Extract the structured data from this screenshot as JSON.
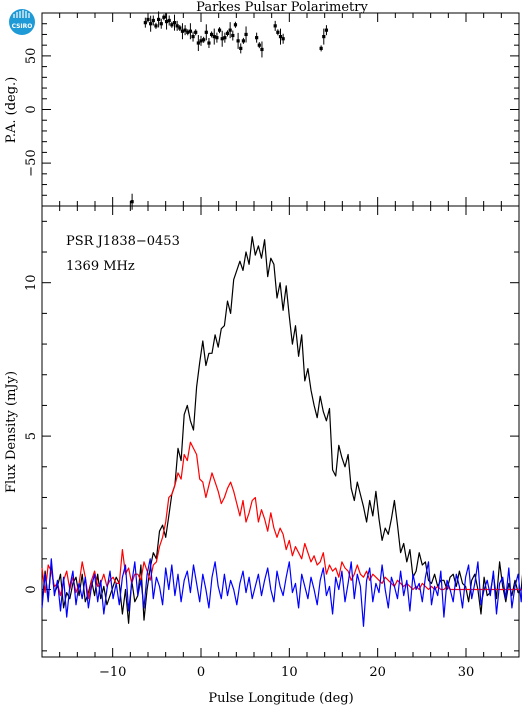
{
  "title": "Parkes Pulsar Polarimetry",
  "logo": {
    "name": "CSIRO",
    "color": "#1e9ad6"
  },
  "xaxis": {
    "label": "Pulse Longitude (deg)",
    "range": [
      -18,
      36
    ],
    "ticks": [
      -10,
      0,
      10,
      20,
      30
    ],
    "tick_labels": [
      "−10",
      "0",
      "10",
      "20",
      "30"
    ]
  },
  "chart_data": [
    {
      "type": "scatter",
      "panel": "top",
      "ylabel": "P.A. (deg.)",
      "ylim": [
        -90,
        90
      ],
      "yticks": [
        -50,
        0,
        50
      ],
      "ytick_labels": [
        "−50",
        "0",
        "50"
      ],
      "error_bars": true,
      "series": [
        {
          "color": "#000000",
          "x": [
            -7.8,
            -6.3,
            -6.0,
            -5.7,
            -5.4,
            -5.1,
            -4.8,
            -4.5,
            -4.2,
            -3.9,
            -3.6,
            -3.3,
            -3.0,
            -2.7,
            -2.4,
            -2.1,
            -1.8,
            -1.5,
            -1.2,
            -0.9,
            -0.6,
            -0.3,
            0.0,
            0.3,
            0.6,
            0.9,
            1.2,
            1.5,
            1.8,
            2.1,
            2.4,
            2.7,
            3.0,
            3.3,
            3.6,
            3.9,
            4.2,
            4.5,
            4.8,
            5.1,
            6.3,
            6.6,
            6.9,
            8.4,
            8.7,
            9.0,
            9.3,
            13.6,
            13.9,
            14.2
          ],
          "y": [
            -86,
            81,
            84,
            80,
            83,
            78,
            84,
            80,
            86,
            82,
            83,
            79,
            81,
            78,
            76,
            73,
            74,
            72,
            73,
            68,
            72,
            62,
            64,
            65,
            72,
            62,
            70,
            68,
            67,
            74,
            66,
            67,
            71,
            74,
            69,
            79,
            64,
            57,
            64,
            70,
            67,
            60,
            56,
            78,
            72,
            68,
            66,
            57,
            68,
            74
          ]
        }
      ]
    },
    {
      "type": "line",
      "panel": "bottom",
      "ylabel": "Flux Density (mJy)",
      "ylim": [
        -2.2,
        12.5
      ],
      "yticks": [
        0,
        5,
        10
      ],
      "ytick_labels": [
        "0",
        "5",
        "10"
      ],
      "annotations": [
        "PSR J1838−0453",
        "1369 MHz"
      ],
      "x_start": -18,
      "x_step": 0.35,
      "series": [
        {
          "color": "#000000",
          "values": [
            -0.5,
            0.6,
            -0.3,
            0.8,
            -0.1,
            0.1,
            0.5,
            -0.6,
            -0.1,
            -0.3,
            0.2,
            0.4,
            -0.2,
            0.5,
            -0.4,
            -0.1,
            0.3,
            -0.2,
            0.5,
            -0.3,
            0.1,
            -0.5,
            -0.2,
            0.1,
            0.4,
            0.2,
            -0.8,
            0.0,
            -1.1,
            0.3,
            -0.4,
            -0.2,
            0.8,
            -1.0,
            0.0,
            0.7,
            1.2,
            1.0,
            1.9,
            2.1,
            1.7,
            2.4,
            3.1,
            3.4,
            4.6,
            4.2,
            5.7,
            6.0,
            5.5,
            5.2,
            6.6,
            7.4,
            8.1,
            7.3,
            7.7,
            7.7,
            8.3,
            7.9,
            8.5,
            8.6,
            9.4,
            9.0,
            10.1,
            10.4,
            10.7,
            10.4,
            11.0,
            10.6,
            11.5,
            10.9,
            11.2,
            10.8,
            11.4,
            10.2,
            10.8,
            10.6,
            9.5,
            10.0,
            9.1,
            9.9,
            8.9,
            8.0,
            8.6,
            7.6,
            8.3,
            6.8,
            7.2,
            6.5,
            6.0,
            5.6,
            6.3,
            5.8,
            5.5,
            5.9,
            3.9,
            3.7,
            4.7,
            4.3,
            4.0,
            4.4,
            3.3,
            2.9,
            3.5,
            3.1,
            2.7,
            2.2,
            2.9,
            2.4,
            3.2,
            2.3,
            1.6,
            2.0,
            1.8,
            2.3,
            2.9,
            2.1,
            1.2,
            1.5,
            0.9,
            1.3,
            0.4,
            0.6,
            1.2,
            0.8,
            0.9,
            0.3,
            0.2,
            0.5,
            0.1,
            0.3,
            0.3,
            0.0,
            0.4,
            0.5,
            0.1,
            0.6,
            0.2,
            0.1,
            -0.4,
            0.3,
            0.5,
            0.0,
            -0.8,
            0.4,
            -0.2,
            -0.1,
            0.5,
            -0.3,
            0.9,
            0.1,
            -0.4,
            0.2,
            -0.2,
            0.3,
            -0.1,
            0.0,
            1.1,
            0.5,
            0.3
          ]
        },
        {
          "color": "#ff0000",
          "values": [
            0.7,
            -0.1,
            0.8,
            0.6,
            0.1,
            0.2,
            -0.2,
            0.3,
            0.6,
            0.0,
            0.4,
            -0.1,
            0.2,
            0.9,
            0.4,
            -0.3,
            0.3,
            0.6,
            0.1,
            0.2,
            0.5,
            0.1,
            0.3,
            0.4,
            0.2,
            0.2,
            1.3,
            0.5,
            0.7,
            0.2,
            0.5,
            0.5,
            0.3,
            0.9,
            0.6,
            0.3,
            0.8,
            0.9,
            1.4,
            1.7,
            2.2,
            3.0,
            3.1,
            3.4,
            3.8,
            3.6,
            4.4,
            4.2,
            4.8,
            4.6,
            4.4,
            3.6,
            3.5,
            3.0,
            3.4,
            3.8,
            3.5,
            3.2,
            2.8,
            3.0,
            3.3,
            3.5,
            3.2,
            2.8,
            2.4,
            2.9,
            2.2,
            2.5,
            2.9,
            3.0,
            2.2,
            2.6,
            2.3,
            1.9,
            2.5,
            2.0,
            1.7,
            2.0,
            1.8,
            1.3,
            1.6,
            1.1,
            1.4,
            1.2,
            1.0,
            1.5,
            1.2,
            0.9,
            1.1,
            0.8,
            0.9,
            1.2,
            0.5,
            0.8,
            0.6,
            0.7,
            0.4,
            0.9,
            0.7,
            0.6,
            0.3,
            0.5,
            0.8,
            0.5,
            0.4,
            0.6,
            0.3,
            0.5,
            0.4,
            0.3,
            0.2,
            0.4,
            0.3,
            0.2,
            0.1,
            0.3,
            0.2,
            0.1,
            0.2,
            0.1,
            0.0,
            0.1,
            0.0,
            0.2,
            0.1,
            0.0,
            0.1,
            0.0,
            0.1,
            0.0,
            0.0,
            0.1,
            0.0,
            0.0,
            0.0,
            0.0,
            0.0,
            0.0,
            0.0,
            0.0,
            0.0,
            0.0,
            0.0,
            0.0,
            0.0,
            0.0,
            0.0,
            0.0,
            0.0,
            0.0,
            0.0,
            0.0,
            0.0,
            0.0,
            0.0,
            0.0,
            0.0,
            0.0,
            0.0
          ]
        },
        {
          "color": "#0000ff",
          "values": [
            -0.6,
            0.5,
            -0.4,
            1.0,
            -0.2,
            0.3,
            -0.7,
            0.4,
            -0.9,
            0.1,
            0.6,
            -0.5,
            0.2,
            -0.3,
            0.4,
            -0.6,
            0.1,
            0.5,
            -0.4,
            0.3,
            -0.8,
            0.0,
            0.6,
            -0.3,
            0.2,
            -0.5,
            0.4,
            0.8,
            -0.7,
            0.2,
            0.9,
            -0.2,
            0.3,
            -0.6,
            0.5,
            1.0,
            -0.3,
            0.4,
            0.1,
            -0.5,
            0.7,
            0.0,
            0.8,
            -0.2,
            0.5,
            -0.4,
            0.3,
            0.6,
            -0.1,
            0.8,
            0.2,
            -0.4,
            0.5,
            0.0,
            -0.6,
            0.4,
            0.9,
            0.1,
            -0.3,
            0.5,
            -0.2,
            0.3,
            0.0,
            -0.5,
            0.2,
            0.6,
            -0.1,
            0.4,
            -0.3,
            0.1,
            0.5,
            -0.2,
            0.3,
            0.7,
            0.0,
            -0.4,
            0.6,
            0.1,
            -0.2,
            0.4,
            0.9,
            -0.1,
            0.2,
            -0.6,
            0.5,
            0.1,
            -0.3,
            0.4,
            0.0,
            -0.5,
            0.3,
            0.7,
            -0.2,
            0.1,
            -0.8,
            0.4,
            0.0,
            0.6,
            -0.4,
            0.2,
            0.9,
            -0.3,
            0.5,
            0.1,
            -1.2,
            0.3,
            0.7,
            -0.4,
            0.2,
            -0.1,
            0.8,
            0.0,
            -0.6,
            0.4,
            0.1,
            -0.3,
            0.6,
            -0.2,
            0.3,
            -0.7,
            0.5,
            0.0,
            0.2,
            -0.4,
            0.4,
            0.9,
            -0.5,
            0.1,
            -0.2,
            0.6,
            -0.9,
            0.3,
            0.0,
            -0.4,
            0.5,
            0.1,
            -0.6,
            0.4,
            0.8,
            -0.3,
            0.2,
            0.9,
            -0.5,
            0.0,
            0.3,
            -0.2,
            0.6,
            -0.8,
            0.2,
            0.4,
            -0.3,
            0.7,
            -0.6,
            0.1,
            0.5,
            -0.4,
            1.1,
            -0.5,
            0.6
          ]
        }
      ]
    }
  ]
}
